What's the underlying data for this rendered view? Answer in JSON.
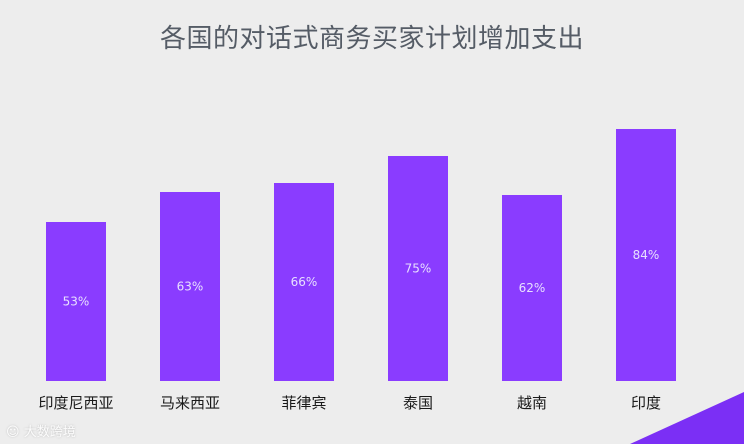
{
  "chart_data": {
    "type": "bar",
    "title": "各国的对话式商务买家计划增加支出",
    "categories": [
      "印度尼西亚",
      "马来西亚",
      "菲律宾",
      "泰国",
      "越南",
      "印度"
    ],
    "values": [
      53,
      63,
      66,
      75,
      62,
      84
    ],
    "data_labels": [
      "53%",
      "63%",
      "66%",
      "75%",
      "62%",
      "84%"
    ],
    "value_unit": "%",
    "ylim": [
      0,
      100
    ],
    "grid": false,
    "legend": "none",
    "colors": {
      "bar": "#8a3cff",
      "background": "#ededed",
      "corner_accent": "#7b2ff5"
    }
  },
  "watermark": {
    "text": "大数跨境"
  }
}
